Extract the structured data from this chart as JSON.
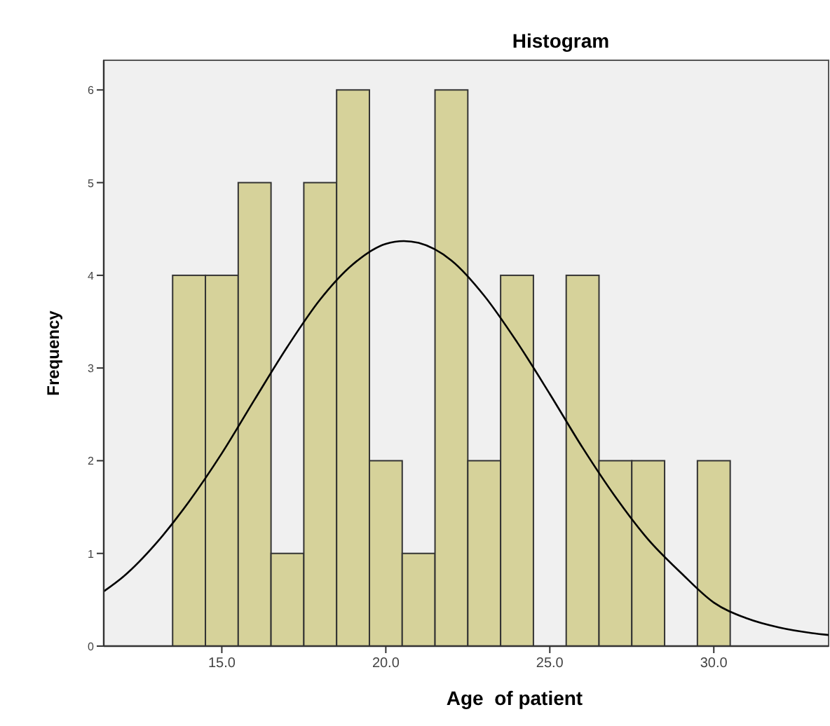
{
  "chart_data": {
    "type": "histogram",
    "title": "Histogram",
    "xlabel": "Age  of patient",
    "ylabel": "Frequency",
    "bins": [
      13.5,
      14.5,
      15.5,
      16.5,
      17.5,
      18.5,
      19.5,
      20.5,
      21.5,
      22.5,
      23.5,
      24.5,
      25.5,
      26.5,
      27.5,
      28.5,
      29.5,
      30.5
    ],
    "values": [
      4,
      4,
      5,
      1,
      5,
      6,
      2,
      1,
      6,
      2,
      4,
      0,
      4,
      2,
      2,
      0,
      2
    ],
    "color": "#d6d29a",
    "series": [
      {
        "type": "line",
        "color": "#000000",
        "x": [
          11.4,
          12,
          13,
          14,
          15,
          16,
          17,
          18,
          19,
          20,
          20.55,
          21,
          22,
          23,
          24,
          25,
          26,
          27,
          28,
          29,
          30,
          31,
          32,
          33,
          33.5
        ],
        "values": [
          0.59,
          0.75,
          1.11,
          1.56,
          2.08,
          2.66,
          3.23,
          3.74,
          4.12,
          4.34,
          4.37,
          4.35,
          4.16,
          3.78,
          3.28,
          2.72,
          2.14,
          1.61,
          1.15,
          0.79,
          0.47,
          0.3,
          0.2,
          0.14,
          0.12
        ]
      }
    ],
    "xlim": [
      11.4,
      33.5
    ],
    "xticks": [
      {
        "value": 15,
        "label": "15.0"
      },
      {
        "value": 20,
        "label": "20.0"
      },
      {
        "value": 25,
        "label": "25.0"
      },
      {
        "value": 30,
        "label": "30.0"
      }
    ],
    "ylim": [
      0,
      6.32
    ],
    "yticks": [
      0,
      1,
      2,
      3,
      4,
      5,
      6
    ],
    "grid": false,
    "marker": "none",
    "line_style": "solid"
  }
}
